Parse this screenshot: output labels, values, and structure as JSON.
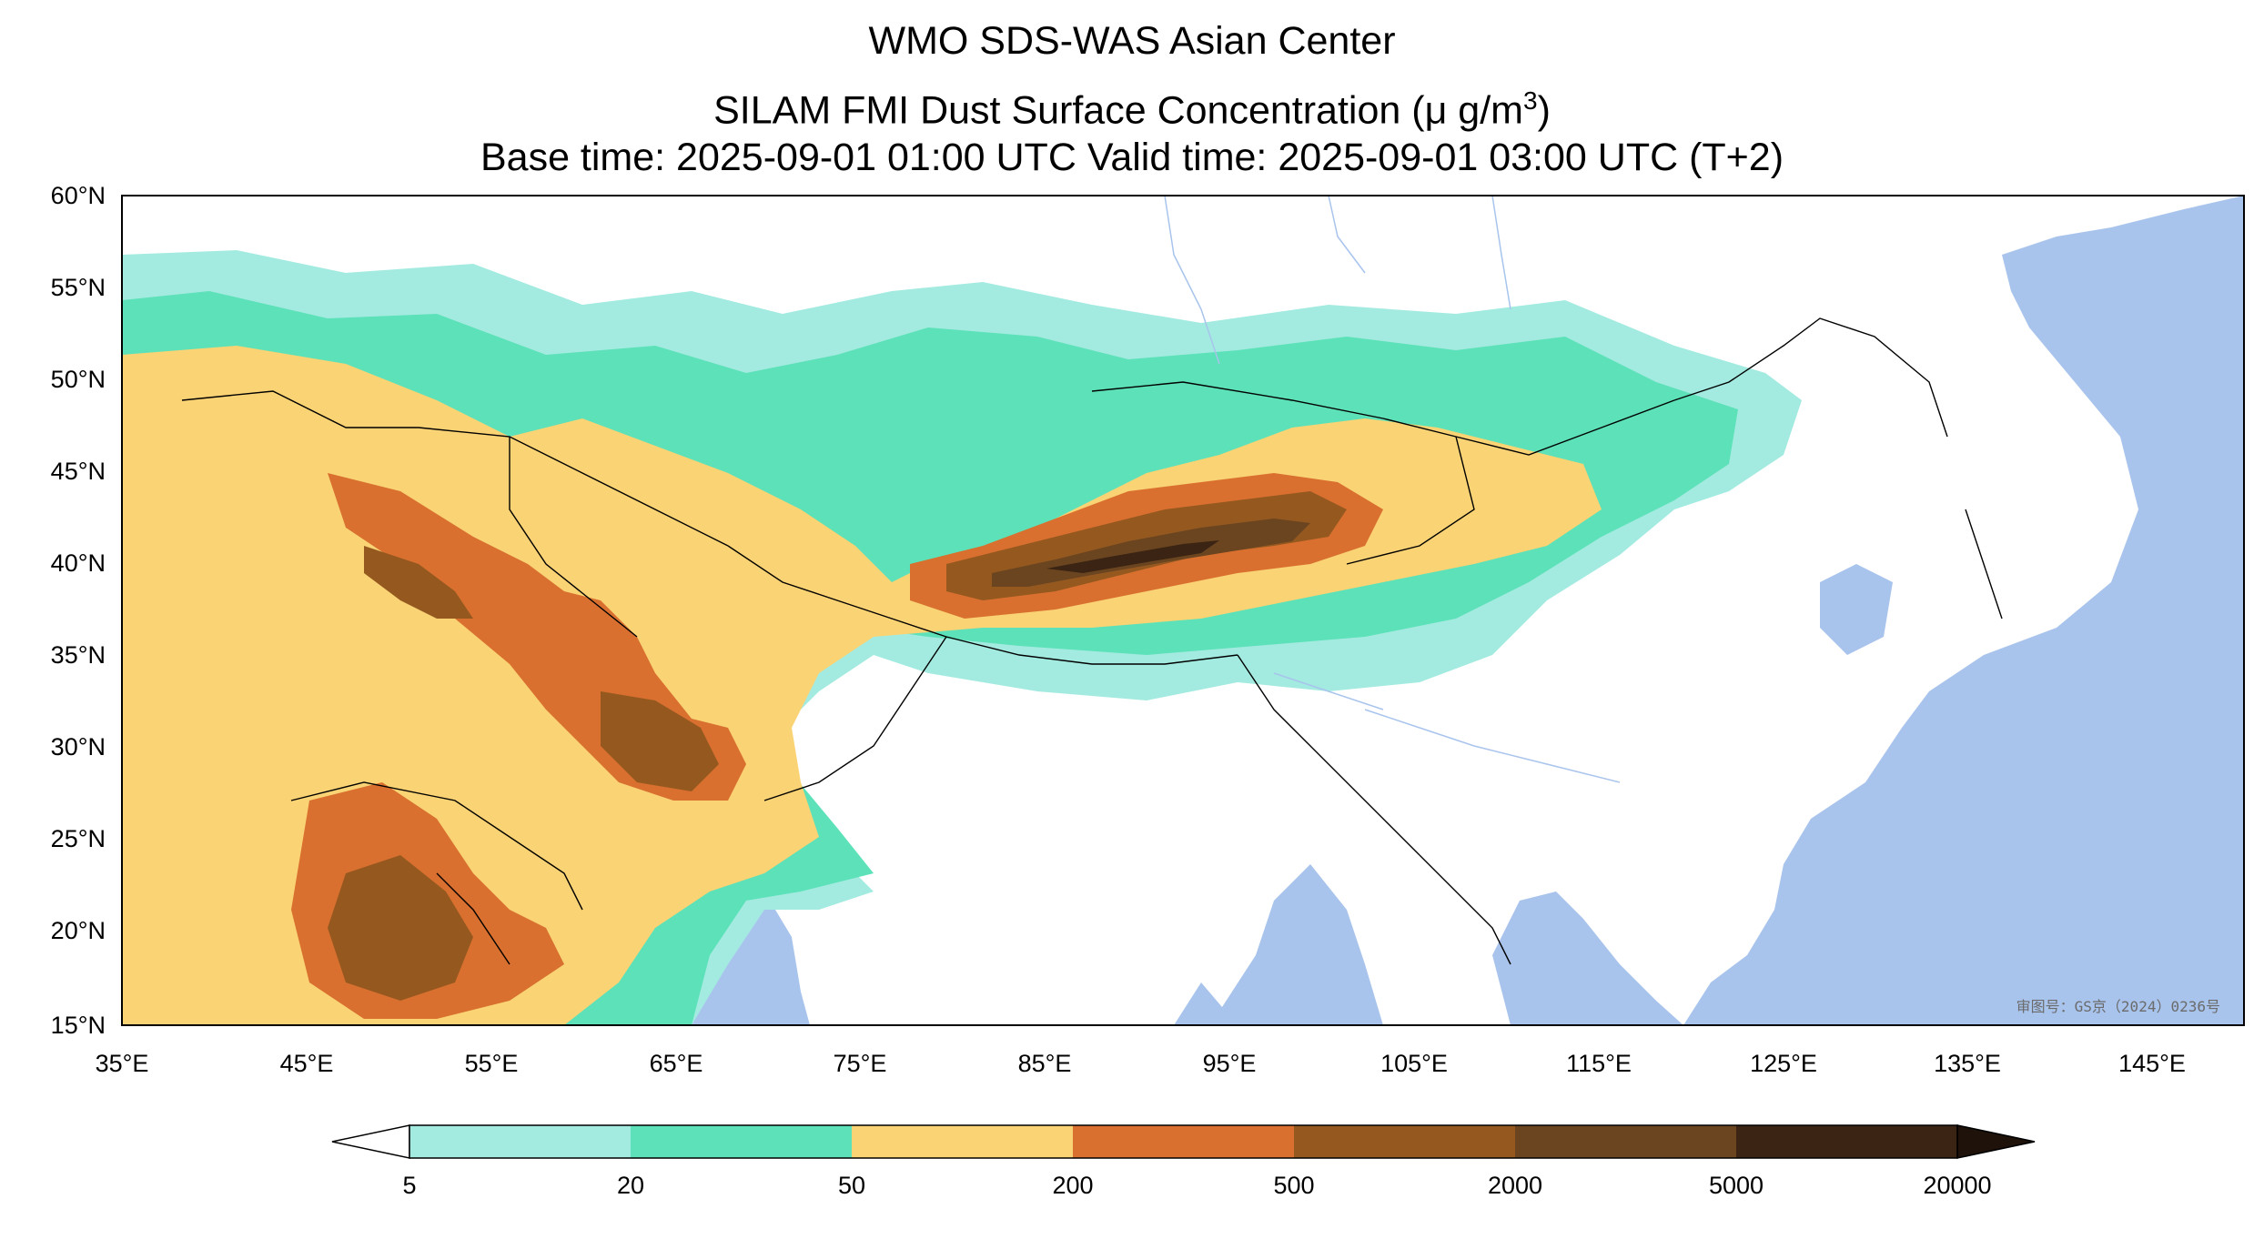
{
  "title": {
    "line1": "WMO SDS-WAS Asian Center",
    "line2_prefix": "SILAM FMI Dust Surface Concentration (",
    "line2_unit": "μ g/m",
    "line2_sup": "3",
    "line2_suffix": ")",
    "line3": "Base time: 2025-09-01 01:00 UTC Valid time: 2025-09-01 03:00 UTC (T+2)"
  },
  "map": {
    "lon_range": [
      35,
      150
    ],
    "lat_range": [
      15,
      60
    ],
    "lat_ticks": [
      "60°N",
      "55°N",
      "50°N",
      "45°N",
      "40°N",
      "35°N",
      "30°N",
      "25°N",
      "20°N",
      "15°N"
    ],
    "lon_ticks": [
      "35°E",
      "45°E",
      "55°E",
      "65°E",
      "75°E",
      "85°E",
      "95°E",
      "105°E",
      "115°E",
      "125°E",
      "135°E",
      "145°E"
    ],
    "review_stamp": "审图号：GS京（2024）0236号",
    "colors": {
      "ocean": "#a8c4ec",
      "land": "#ffffff",
      "border": "#000000"
    }
  },
  "colorbar": {
    "levels": [
      "5",
      "20",
      "50",
      "200",
      "500",
      "2000",
      "5000",
      "20000"
    ],
    "colors": [
      "#ffffff",
      "#a3ebe0",
      "#5de1b8",
      "#fad374",
      "#d9702f",
      "#955920",
      "#6a4520",
      "#3b2413",
      "#1e120a"
    ],
    "extend": "both"
  },
  "legend_colors": {
    "c5_20": "#a3ebe0",
    "c20_50": "#5de1b8",
    "c50_200": "#fad374",
    "c200_500": "#d9702f",
    "c500_2000": "#955920",
    "c2000_5000": "#6a4520",
    "c5000_20000": "#3b2413"
  }
}
